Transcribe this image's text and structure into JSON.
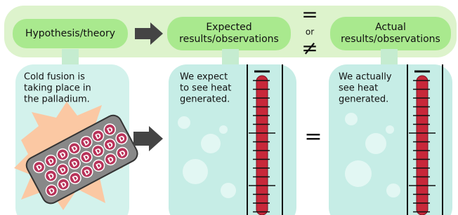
{
  "header": {
    "hypothesis": "Hypothesis/theory",
    "expected": [
      "Expected",
      "results/observations"
    ],
    "actual": [
      "Actual",
      "results/observations"
    ],
    "equal": "=",
    "or": "or",
    "not_equal": "≠"
  },
  "panels": {
    "hypothesis": [
      "Cold fusion is",
      "taking place in",
      "the palladium."
    ],
    "particle": "D",
    "expected": [
      "We expect",
      "to see heat",
      "generated."
    ],
    "equal": "=",
    "actual": [
      "We actually",
      "see heat",
      "generated."
    ]
  }
}
